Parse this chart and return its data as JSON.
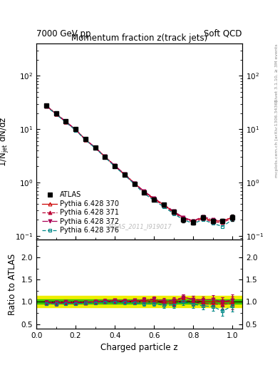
{
  "title_main": "Momentum fraction z(track jets)",
  "header_left": "7000 GeV pp",
  "header_right": "Soft QCD",
  "watermark": "ATLAS_2011_I919017",
  "rivet_label": "Rivet 3.1.10, ≥ 3M events",
  "arxiv_label": "mcplots.cern.ch [arXiv:1306.3436]",
  "ylabel_main": "1/N$_\\mathrm{jet}$ dN/dz",
  "ylabel_ratio": "Ratio to ATLAS",
  "xlabel": "Charged particle z",
  "ylim_main_log": [
    0.085,
    400
  ],
  "ylim_ratio": [
    0.4,
    2.4
  ],
  "xlim": [
    0.0,
    1.05
  ],
  "x_data": [
    0.05,
    0.1,
    0.15,
    0.2,
    0.25,
    0.3,
    0.35,
    0.4,
    0.45,
    0.5,
    0.55,
    0.6,
    0.65,
    0.7,
    0.75,
    0.8,
    0.85,
    0.9,
    0.95,
    1.0
  ],
  "atlas_y": [
    28.0,
    20.0,
    14.0,
    10.0,
    6.5,
    4.5,
    3.0,
    2.0,
    1.4,
    0.95,
    0.65,
    0.48,
    0.38,
    0.28,
    0.2,
    0.18,
    0.22,
    0.19,
    0.19,
    0.22
  ],
  "atlas_yerr": [
    1.5,
    0.8,
    0.6,
    0.4,
    0.3,
    0.2,
    0.15,
    0.1,
    0.07,
    0.05,
    0.04,
    0.03,
    0.03,
    0.02,
    0.02,
    0.02,
    0.02,
    0.02,
    0.02,
    0.03
  ],
  "py370_y": [
    27.5,
    19.5,
    13.8,
    9.8,
    6.4,
    4.5,
    3.05,
    2.05,
    1.42,
    0.97,
    0.67,
    0.5,
    0.38,
    0.28,
    0.22,
    0.19,
    0.22,
    0.19,
    0.19,
    0.22
  ],
  "py371_y": [
    27.2,
    19.3,
    13.6,
    9.7,
    6.35,
    4.45,
    3.02,
    2.02,
    1.4,
    0.95,
    0.65,
    0.48,
    0.37,
    0.27,
    0.21,
    0.18,
    0.21,
    0.18,
    0.18,
    0.21
  ],
  "py372_y": [
    27.8,
    19.7,
    14.0,
    9.9,
    6.45,
    4.55,
    3.08,
    2.08,
    1.44,
    0.98,
    0.68,
    0.51,
    0.39,
    0.29,
    0.22,
    0.19,
    0.23,
    0.2,
    0.19,
    0.23
  ],
  "py376_y": [
    27.0,
    19.0,
    13.5,
    9.6,
    6.3,
    4.4,
    2.98,
    1.98,
    1.38,
    0.93,
    0.62,
    0.46,
    0.35,
    0.26,
    0.2,
    0.17,
    0.2,
    0.17,
    0.15,
    0.2
  ],
  "py370_ratio": [
    0.982,
    0.975,
    0.986,
    0.98,
    0.985,
    1.0,
    1.017,
    1.025,
    1.014,
    1.021,
    1.031,
    1.042,
    1.0,
    1.0,
    1.1,
    1.056,
    1.0,
    1.0,
    1.0,
    1.0
  ],
  "py371_ratio": [
    0.971,
    0.965,
    0.971,
    0.97,
    0.977,
    0.989,
    1.007,
    1.01,
    1.0,
    1.0,
    1.0,
    1.0,
    0.974,
    0.964,
    1.05,
    1.0,
    0.955,
    0.947,
    0.947,
    0.955
  ],
  "py372_ratio": [
    0.993,
    0.985,
    1.0,
    0.99,
    0.992,
    1.011,
    1.027,
    1.04,
    1.029,
    1.032,
    1.046,
    1.063,
    1.026,
    1.036,
    1.1,
    1.056,
    1.045,
    1.053,
    1.0,
    1.045
  ],
  "py376_ratio": [
    0.964,
    0.95,
    0.964,
    0.96,
    0.969,
    0.978,
    0.993,
    0.99,
    0.986,
    0.979,
    0.954,
    0.958,
    0.921,
    0.929,
    1.0,
    0.944,
    0.909,
    0.895,
    0.79,
    0.909
  ],
  "ratio_yerr_370": [
    0.04,
    0.035,
    0.035,
    0.035,
    0.035,
    0.035,
    0.035,
    0.035,
    0.04,
    0.04,
    0.05,
    0.05,
    0.055,
    0.06,
    0.07,
    0.08,
    0.08,
    0.09,
    0.1,
    0.12
  ],
  "ratio_yerr_371": [
    0.04,
    0.035,
    0.035,
    0.035,
    0.035,
    0.035,
    0.035,
    0.035,
    0.04,
    0.04,
    0.05,
    0.05,
    0.055,
    0.06,
    0.07,
    0.08,
    0.08,
    0.09,
    0.1,
    0.12
  ],
  "ratio_yerr_372": [
    0.04,
    0.035,
    0.035,
    0.035,
    0.035,
    0.035,
    0.035,
    0.035,
    0.04,
    0.04,
    0.05,
    0.05,
    0.055,
    0.06,
    0.07,
    0.08,
    0.08,
    0.09,
    0.1,
    0.12
  ],
  "ratio_yerr_376": [
    0.04,
    0.035,
    0.035,
    0.035,
    0.035,
    0.035,
    0.035,
    0.035,
    0.04,
    0.04,
    0.05,
    0.05,
    0.055,
    0.06,
    0.07,
    0.08,
    0.08,
    0.09,
    0.1,
    0.12
  ],
  "band_green_lo": 0.95,
  "band_green_hi": 1.05,
  "band_yellow_lo": 0.87,
  "band_yellow_hi": 1.13,
  "color_atlas": "#000000",
  "color_py370": "#cc0000",
  "color_py371": "#bb0033",
  "color_py372": "#aa0055",
  "color_py376": "#008888",
  "color_green_band": "#00bb00",
  "color_yellow_band": "#eeee00",
  "tick_label_size": 7.5,
  "axis_label_size": 8.5,
  "title_size": 8.5,
  "header_size": 8.5,
  "legend_fontsize": 7.0
}
